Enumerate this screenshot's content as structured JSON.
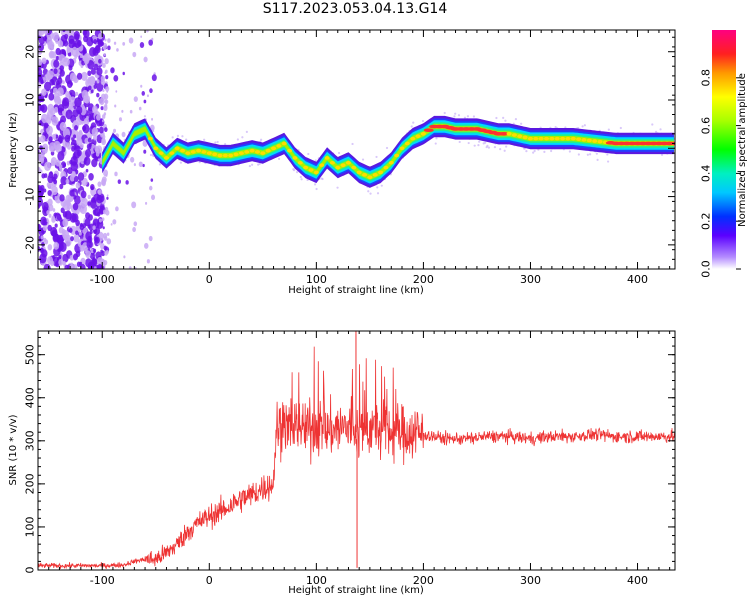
{
  "title": "S117.2023.053.04.13.G14",
  "chart_data": [
    {
      "type": "heatmap",
      "xlabel": "Height of straight line (km)",
      "ylabel": "Frequency (Hz)",
      "xlim": [
        -160,
        435
      ],
      "ylim": [
        -25,
        24.5
      ],
      "x_ticks": [
        -100,
        0,
        100,
        200,
        300,
        400
      ],
      "y_ticks": [
        -20,
        -10,
        0,
        10,
        20
      ],
      "colorbar": {
        "label": "Normalized spectral amplitude",
        "range": [
          0,
          1
        ],
        "ticks": [
          0.0,
          0.2,
          0.4,
          0.6,
          0.8
        ]
      },
      "ridge": {
        "x": [
          -100,
          -90,
          -80,
          -70,
          -60,
          -50,
          -40,
          -30,
          -20,
          -10,
          0,
          10,
          20,
          30,
          40,
          50,
          60,
          70,
          80,
          90,
          100,
          110,
          120,
          130,
          140,
          150,
          160,
          170,
          180,
          190,
          200,
          210,
          220,
          230,
          240,
          250,
          260,
          270,
          280,
          290,
          300,
          320,
          340,
          360,
          380,
          400,
          420,
          435
        ],
        "freq": [
          -3,
          1,
          -1,
          3,
          4,
          0,
          -2,
          0,
          -1,
          -0.5,
          -1,
          -1.5,
          -1.5,
          -1,
          -0.5,
          -1,
          0,
          1,
          -2,
          -4,
          -5,
          -2,
          -4,
          -3,
          -5,
          -6,
          -5,
          -3,
          0,
          2,
          3,
          4.5,
          4.5,
          4,
          4,
          4,
          3.5,
          3,
          3,
          2.5,
          2,
          2,
          2,
          1.5,
          1,
          1,
          1,
          1
        ]
      }
    },
    {
      "type": "line",
      "xlabel": "Height of straight line (km)",
      "ylabel": "SNR (10 * v/v)",
      "xlim": [
        -160,
        435
      ],
      "ylim": [
        0,
        555
      ],
      "x_ticks": [
        -100,
        0,
        100,
        200,
        300,
        400
      ],
      "y_ticks": [
        0,
        100,
        200,
        300,
        400,
        500
      ],
      "color": "#ee3333",
      "series": [
        {
          "x": [
            -160,
            -140,
            -120,
            -100,
            -80,
            -70,
            -60,
            -50,
            -40,
            -30,
            -20,
            -10,
            0,
            10,
            20,
            30,
            40,
            50,
            60,
            63,
            70,
            80,
            90,
            100,
            110,
            120,
            130,
            140,
            150,
            160,
            170,
            180,
            190,
            200,
            210,
            220,
            240,
            260,
            280,
            300,
            320,
            340,
            360,
            380,
            400,
            420,
            435
          ],
          "values": [
            10,
            10,
            10,
            10,
            12,
            20,
            25,
            25,
            40,
            60,
            90,
            110,
            125,
            135,
            150,
            165,
            175,
            190,
            200,
            330,
            340,
            335,
            330,
            335,
            325,
            330,
            330,
            320,
            330,
            325,
            320,
            320,
            320,
            315,
            310,
            305,
            305,
            310,
            310,
            305,
            310,
            310,
            315,
            310,
            310,
            310,
            310
          ]
        }
      ],
      "spikes": [
        {
          "x": 137,
          "value": 555
        },
        {
          "x": 138,
          "value": 5
        }
      ]
    }
  ]
}
